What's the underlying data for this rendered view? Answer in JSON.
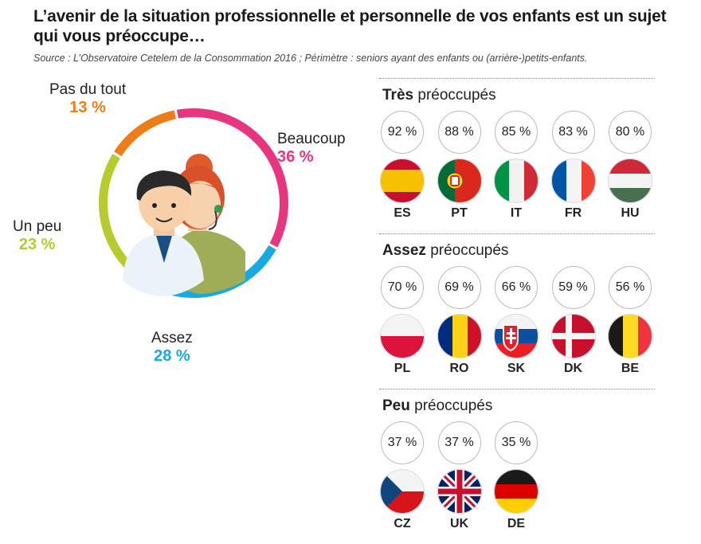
{
  "header": {
    "title": "L’avenir de la situation professionnelle et personnelle de vos enfants est un sujet qui vous préoccupe…",
    "source": "Source : L’Observatoire Cetelem de la Consommation 2016 ; Périmètre : seniors ayant des enfants ou (arrière-)petits-enfants."
  },
  "chart_data": [
    {
      "type": "pie",
      "variant": "donut",
      "slices": [
        {
          "label": "Beaucoup",
          "value": 36,
          "display": "36 %",
          "color": "#e8357f"
        },
        {
          "label": "Assez",
          "value": 28,
          "display": "28 %",
          "color": "#19a9e1"
        },
        {
          "label": "Un peu",
          "value": 23,
          "display": "23 %",
          "color": "#b8cb2e"
        },
        {
          "label": "Pas du tout",
          "value": 13,
          "display": "13 %",
          "color": "#ef7d17"
        }
      ]
    },
    {
      "type": "table",
      "groups": [
        {
          "title_bold": "Très",
          "title_rest": " préoccupés",
          "countries": [
            {
              "code": "ES",
              "value": 92,
              "display": "92 %",
              "flag": "es-flag-icon"
            },
            {
              "code": "PT",
              "value": 88,
              "display": "88 %",
              "flag": "pt-flag-icon"
            },
            {
              "code": "IT",
              "value": 85,
              "display": "85 %",
              "flag": "it-flag-icon"
            },
            {
              "code": "FR",
              "value": 83,
              "display": "83 %",
              "flag": "fr-flag-icon"
            },
            {
              "code": "HU",
              "value": 80,
              "display": "80 %",
              "flag": "hu-flag-icon"
            }
          ]
        },
        {
          "title_bold": "Assez",
          "title_rest": " préoccupés",
          "countries": [
            {
              "code": "PL",
              "value": 70,
              "display": "70 %",
              "flag": "pl-flag-icon"
            },
            {
              "code": "RO",
              "value": 69,
              "display": "69 %",
              "flag": "ro-flag-icon"
            },
            {
              "code": "SK",
              "value": 66,
              "display": "66 %",
              "flag": "sk-flag-icon"
            },
            {
              "code": "DK",
              "value": 59,
              "display": "59 %",
              "flag": "dk-flag-icon"
            },
            {
              "code": "BE",
              "value": 56,
              "display": "56 %",
              "flag": "be-flag-icon"
            }
          ]
        },
        {
          "title_bold": "Peu",
          "title_rest": " préoccupés",
          "countries": [
            {
              "code": "CZ",
              "value": 37,
              "display": "37 %",
              "flag": "cz-flag-icon"
            },
            {
              "code": "UK",
              "value": 37,
              "display": "37 %",
              "flag": "uk-flag-icon"
            },
            {
              "code": "DE",
              "value": 35,
              "display": "35 %",
              "flag": "de-flag-icon"
            }
          ]
        }
      ]
    }
  ]
}
